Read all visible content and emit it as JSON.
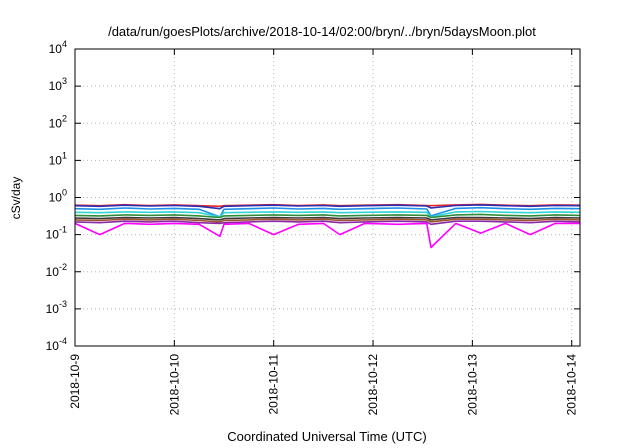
{
  "chart_data": {
    "type": "line",
    "title": "/data/run/goesPlots/archive/2018-10-14/02:00/bryn/../bryn/5daysMoon.plot",
    "xlabel": "Coordinated Universal Time (UTC)",
    "ylabel": "cSv/day",
    "yscale": "log",
    "xlim": [
      "2018-10-09T00:00",
      "2018-10-14T02:00"
    ],
    "ylim": [
      0.0001,
      10000
    ],
    "grid": true,
    "x_ticks": [
      "2018-10-9",
      "2018-10-10",
      "2018-10-11",
      "2018-10-12",
      "2018-10-13",
      "2018-10-14"
    ],
    "y_ticks": [
      {
        "base": "10",
        "exp": "-4",
        "value": 0.0001
      },
      {
        "base": "10",
        "exp": "-3",
        "value": 0.001
      },
      {
        "base": "10",
        "exp": "-2",
        "value": 0.01
      },
      {
        "base": "10",
        "exp": "-1",
        "value": 0.1
      },
      {
        "base": "10",
        "exp": "0",
        "value": 1
      },
      {
        "base": "10",
        "exp": "1",
        "value": 10
      },
      {
        "base": "10",
        "exp": "2",
        "value": 100
      },
      {
        "base": "10",
        "exp": "3",
        "value": 1000
      },
      {
        "base": "10",
        "exp": "4",
        "value": 10000
      }
    ],
    "x": [
      "2018-10-09T00:00",
      "2018-10-09T06:00",
      "2018-10-09T12:00",
      "2018-10-09T18:00",
      "2018-10-10T00:00",
      "2018-10-10T06:00",
      "2018-10-10T11:00",
      "2018-10-10T12:00",
      "2018-10-10T18:00",
      "2018-10-11T00:00",
      "2018-10-11T06:00",
      "2018-10-11T12:00",
      "2018-10-11T16:00",
      "2018-10-11T22:00",
      "2018-10-12T06:00",
      "2018-10-12T13:00",
      "2018-10-12T14:00",
      "2018-10-12T20:00",
      "2018-10-13T02:00",
      "2018-10-13T08:00",
      "2018-10-13T14:00",
      "2018-10-13T20:00",
      "2018-10-14T02:00"
    ],
    "series": [
      {
        "color": "#e8242a",
        "values": [
          0.62,
          0.6,
          0.64,
          0.61,
          0.63,
          0.6,
          0.58,
          0.6,
          0.62,
          0.64,
          0.61,
          0.63,
          0.6,
          0.62,
          0.64,
          0.61,
          0.6,
          0.63,
          0.65,
          0.62,
          0.6,
          0.63,
          0.62
        ]
      },
      {
        "color": "#2a2fb0",
        "values": [
          0.6,
          0.58,
          0.62,
          0.59,
          0.61,
          0.58,
          0.5,
          0.58,
          0.6,
          0.62,
          0.59,
          0.61,
          0.58,
          0.6,
          0.62,
          0.59,
          0.52,
          0.61,
          0.63,
          0.6,
          0.58,
          0.61,
          0.6
        ]
      },
      {
        "color": "#1f8fe8",
        "values": [
          0.5,
          0.48,
          0.52,
          0.49,
          0.51,
          0.48,
          0.3,
          0.48,
          0.5,
          0.52,
          0.49,
          0.51,
          0.48,
          0.5,
          0.52,
          0.49,
          0.32,
          0.51,
          0.53,
          0.5,
          0.48,
          0.51,
          0.5
        ]
      },
      {
        "color": "#2ed5d5",
        "values": [
          0.4,
          0.39,
          0.41,
          0.4,
          0.41,
          0.39,
          0.3,
          0.39,
          0.4,
          0.41,
          0.4,
          0.41,
          0.39,
          0.4,
          0.41,
          0.4,
          0.3,
          0.41,
          0.42,
          0.4,
          0.39,
          0.41,
          0.4
        ]
      },
      {
        "color": "#2e8b3a",
        "values": [
          0.33,
          0.32,
          0.34,
          0.33,
          0.34,
          0.32,
          0.29,
          0.32,
          0.33,
          0.34,
          0.33,
          0.34,
          0.32,
          0.33,
          0.34,
          0.33,
          0.29,
          0.34,
          0.35,
          0.33,
          0.32,
          0.34,
          0.33
        ]
      },
      {
        "color": "#3a3a3a",
        "values": [
          0.28,
          0.27,
          0.29,
          0.28,
          0.29,
          0.27,
          0.25,
          0.27,
          0.28,
          0.29,
          0.28,
          0.29,
          0.27,
          0.28,
          0.29,
          0.28,
          0.25,
          0.29,
          0.29,
          0.28,
          0.27,
          0.29,
          0.28
        ]
      },
      {
        "color": "#a0522d",
        "values": [
          0.25,
          0.24,
          0.26,
          0.25,
          0.26,
          0.24,
          0.22,
          0.24,
          0.25,
          0.26,
          0.25,
          0.26,
          0.24,
          0.25,
          0.26,
          0.25,
          0.22,
          0.26,
          0.26,
          0.25,
          0.24,
          0.26,
          0.25
        ]
      },
      {
        "color": "#8b2aa8",
        "values": [
          0.22,
          0.21,
          0.23,
          0.22,
          0.23,
          0.21,
          0.2,
          0.21,
          0.22,
          0.23,
          0.22,
          0.23,
          0.21,
          0.22,
          0.23,
          0.22,
          0.19,
          0.23,
          0.23,
          0.22,
          0.21,
          0.23,
          0.22
        ]
      },
      {
        "color": "#ff00ff",
        "values": [
          0.2,
          0.1,
          0.2,
          0.19,
          0.2,
          0.19,
          0.09,
          0.19,
          0.2,
          0.1,
          0.19,
          0.2,
          0.1,
          0.2,
          0.19,
          0.2,
          0.045,
          0.2,
          0.11,
          0.2,
          0.1,
          0.2,
          0.2
        ]
      }
    ]
  }
}
